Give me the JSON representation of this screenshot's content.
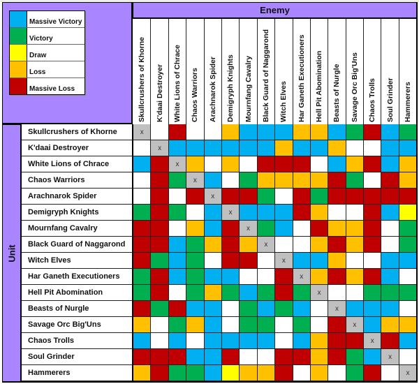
{
  "legend": [
    {
      "key": "MV",
      "label": "Massive Victory",
      "color": "#00b0f0"
    },
    {
      "key": "V",
      "label": "Victory",
      "color": "#00b050"
    },
    {
      "key": "D",
      "label": "Draw",
      "color": "#ffff00"
    },
    {
      "key": "L",
      "label": "Loss",
      "color": "#ffc000"
    },
    {
      "key": "ML",
      "label": "Massive Loss",
      "color": "#c00000"
    }
  ],
  "colors": {
    "B": "#00b0f0",
    "G": "#00b050",
    "Y": "#ffff00",
    "O": "#ffc000",
    "R": "#c00000",
    "W": "#ffffff",
    "X": "#c0c0c0",
    "header": "#a985ff"
  },
  "enemy_title": "Enemy",
  "unit_title": "Unit",
  "self_marker": "x",
  "units": [
    "Skullcrushers of Khorne",
    "K'daai Destroyer",
    "White Lions of Chrace",
    "Chaos Warriors",
    "Arachnarok Spider",
    "Demigryph Knights",
    "Mournfang Cavalry",
    "Black Guard of Naggarond",
    "Witch Elves",
    "Har Ganeth Executioners",
    "Hell Pit Abomination",
    "Beasts of Nurgle",
    "Savage Orc Big'Uns",
    "Chaos Trolls",
    "Soul Grinder",
    "Hammerers"
  ],
  "chart_data": {
    "type": "heatmap",
    "title": "Unit vs Enemy matchup results",
    "xlabel": "Enemy",
    "ylabel": "Unit",
    "legend": {
      "B": "Massive Victory",
      "G": "Victory",
      "Y": "Draw",
      "O": "Loss",
      "R": "Massive Loss",
      "W": "(blank)",
      "X": "Self (x)"
    },
    "legend_position": "top-left",
    "x": [
      "Skullcrushers of Khorne",
      "K'daai Destroyer",
      "White Lions of Chrace",
      "Chaos Warriors",
      "Arachnarok Spider",
      "Demigryph Knights",
      "Mournfang Cavalry",
      "Black Guard of Naggarond",
      "Witch Elves",
      "Har Ganeth Executioners",
      "Hell Pit Abomination",
      "Beasts of Nurgle",
      "Savage Orc Big'Uns",
      "Chaos Trolls",
      "Soul Grinder",
      "Hammerers"
    ],
    "y": [
      "Skullcrushers of Khorne",
      "K'daai Destroyer",
      "White Lions of Chrace",
      "Chaos Warriors",
      "Arachnarok Spider",
      "Demigryph Knights",
      "Mournfang Cavalry",
      "Black Guard of Naggarond",
      "Witch Elves",
      "Har Ganeth Executioners",
      "Hell Pit Abomination",
      "Beasts of Nurgle",
      "Savage Orc Big'Uns",
      "Chaos Trolls",
      "Soul Grinder",
      "Hammerers"
    ],
    "matrix": [
      [
        "X",
        "W",
        "R",
        "W",
        "W",
        "O",
        "B",
        "B",
        "B",
        "O",
        "O",
        "B",
        "G",
        "R",
        "B",
        "G"
      ],
      [
        "W",
        "X",
        "B",
        "B",
        "B",
        "B",
        "B",
        "B",
        "O",
        "B",
        "B",
        "O",
        "W",
        "W",
        "B",
        "B"
      ],
      [
        "B",
        "R",
        "X",
        "O",
        "W",
        "O",
        "W",
        "R",
        "R",
        "R",
        "W",
        "B",
        "O",
        "R",
        "B",
        "O"
      ],
      [
        "W",
        "R",
        "G",
        "X",
        "B",
        "W",
        "G",
        "O",
        "O",
        "O",
        "O",
        "R",
        "G",
        "W",
        "R",
        "O"
      ],
      [
        "W",
        "R",
        "W",
        "R",
        "X",
        "R",
        "R",
        "G",
        "W",
        "R",
        "G",
        "R",
        "R",
        "R",
        "R",
        "R"
      ],
      [
        "G",
        "R",
        "G",
        "W",
        "B",
        "X",
        "B",
        "B",
        "B",
        "R",
        "O",
        "W",
        "W",
        "R",
        "B",
        "Y"
      ],
      [
        "R",
        "R",
        "W",
        "O",
        "B",
        "R",
        "X",
        "G",
        "B",
        "W",
        "R",
        "O",
        "O",
        "R",
        "W",
        "G"
      ],
      [
        "R",
        "R",
        "B",
        "G",
        "O",
        "R",
        "O",
        "X",
        "W",
        "W",
        "O",
        "R",
        "O",
        "R",
        "W",
        "G"
      ],
      [
        "R",
        "G",
        "B",
        "G",
        "W",
        "R",
        "R",
        "W",
        "X",
        "B",
        "B",
        "O",
        "W",
        "W",
        "B",
        "B"
      ],
      [
        "G",
        "R",
        "B",
        "G",
        "B",
        "B",
        "W",
        "W",
        "R",
        "X",
        "O",
        "R",
        "O",
        "R",
        "B",
        "W"
      ],
      [
        "G",
        "R",
        "W",
        "G",
        "O",
        "G",
        "B",
        "G",
        "R",
        "G",
        "X",
        "W",
        "W",
        "G",
        "G",
        "G"
      ],
      [
        "R",
        "G",
        "R",
        "B",
        "B",
        "W",
        "G",
        "B",
        "G",
        "B",
        "W",
        "X",
        "B",
        "B",
        "B",
        "W"
      ],
      [
        "O",
        "W",
        "G",
        "O",
        "B",
        "W",
        "G",
        "G",
        "W",
        "G",
        "W",
        "R",
        "X",
        "B",
        "O",
        "O"
      ],
      [
        "B",
        "W",
        "B",
        "W",
        "B",
        "B",
        "B",
        "B",
        "W",
        "B",
        "O",
        "R",
        "R",
        "X",
        "R",
        "B"
      ],
      [
        "R",
        "R",
        "R",
        "B",
        "B",
        "R",
        "W",
        "W",
        "R",
        "R",
        "O",
        "R",
        "G",
        "B",
        "X",
        "W"
      ],
      [
        "O",
        "R",
        "G",
        "G",
        "B",
        "Y",
        "O",
        "O",
        "R",
        "W",
        "O",
        "W",
        "G",
        "R",
        "W",
        "X"
      ]
    ]
  }
}
